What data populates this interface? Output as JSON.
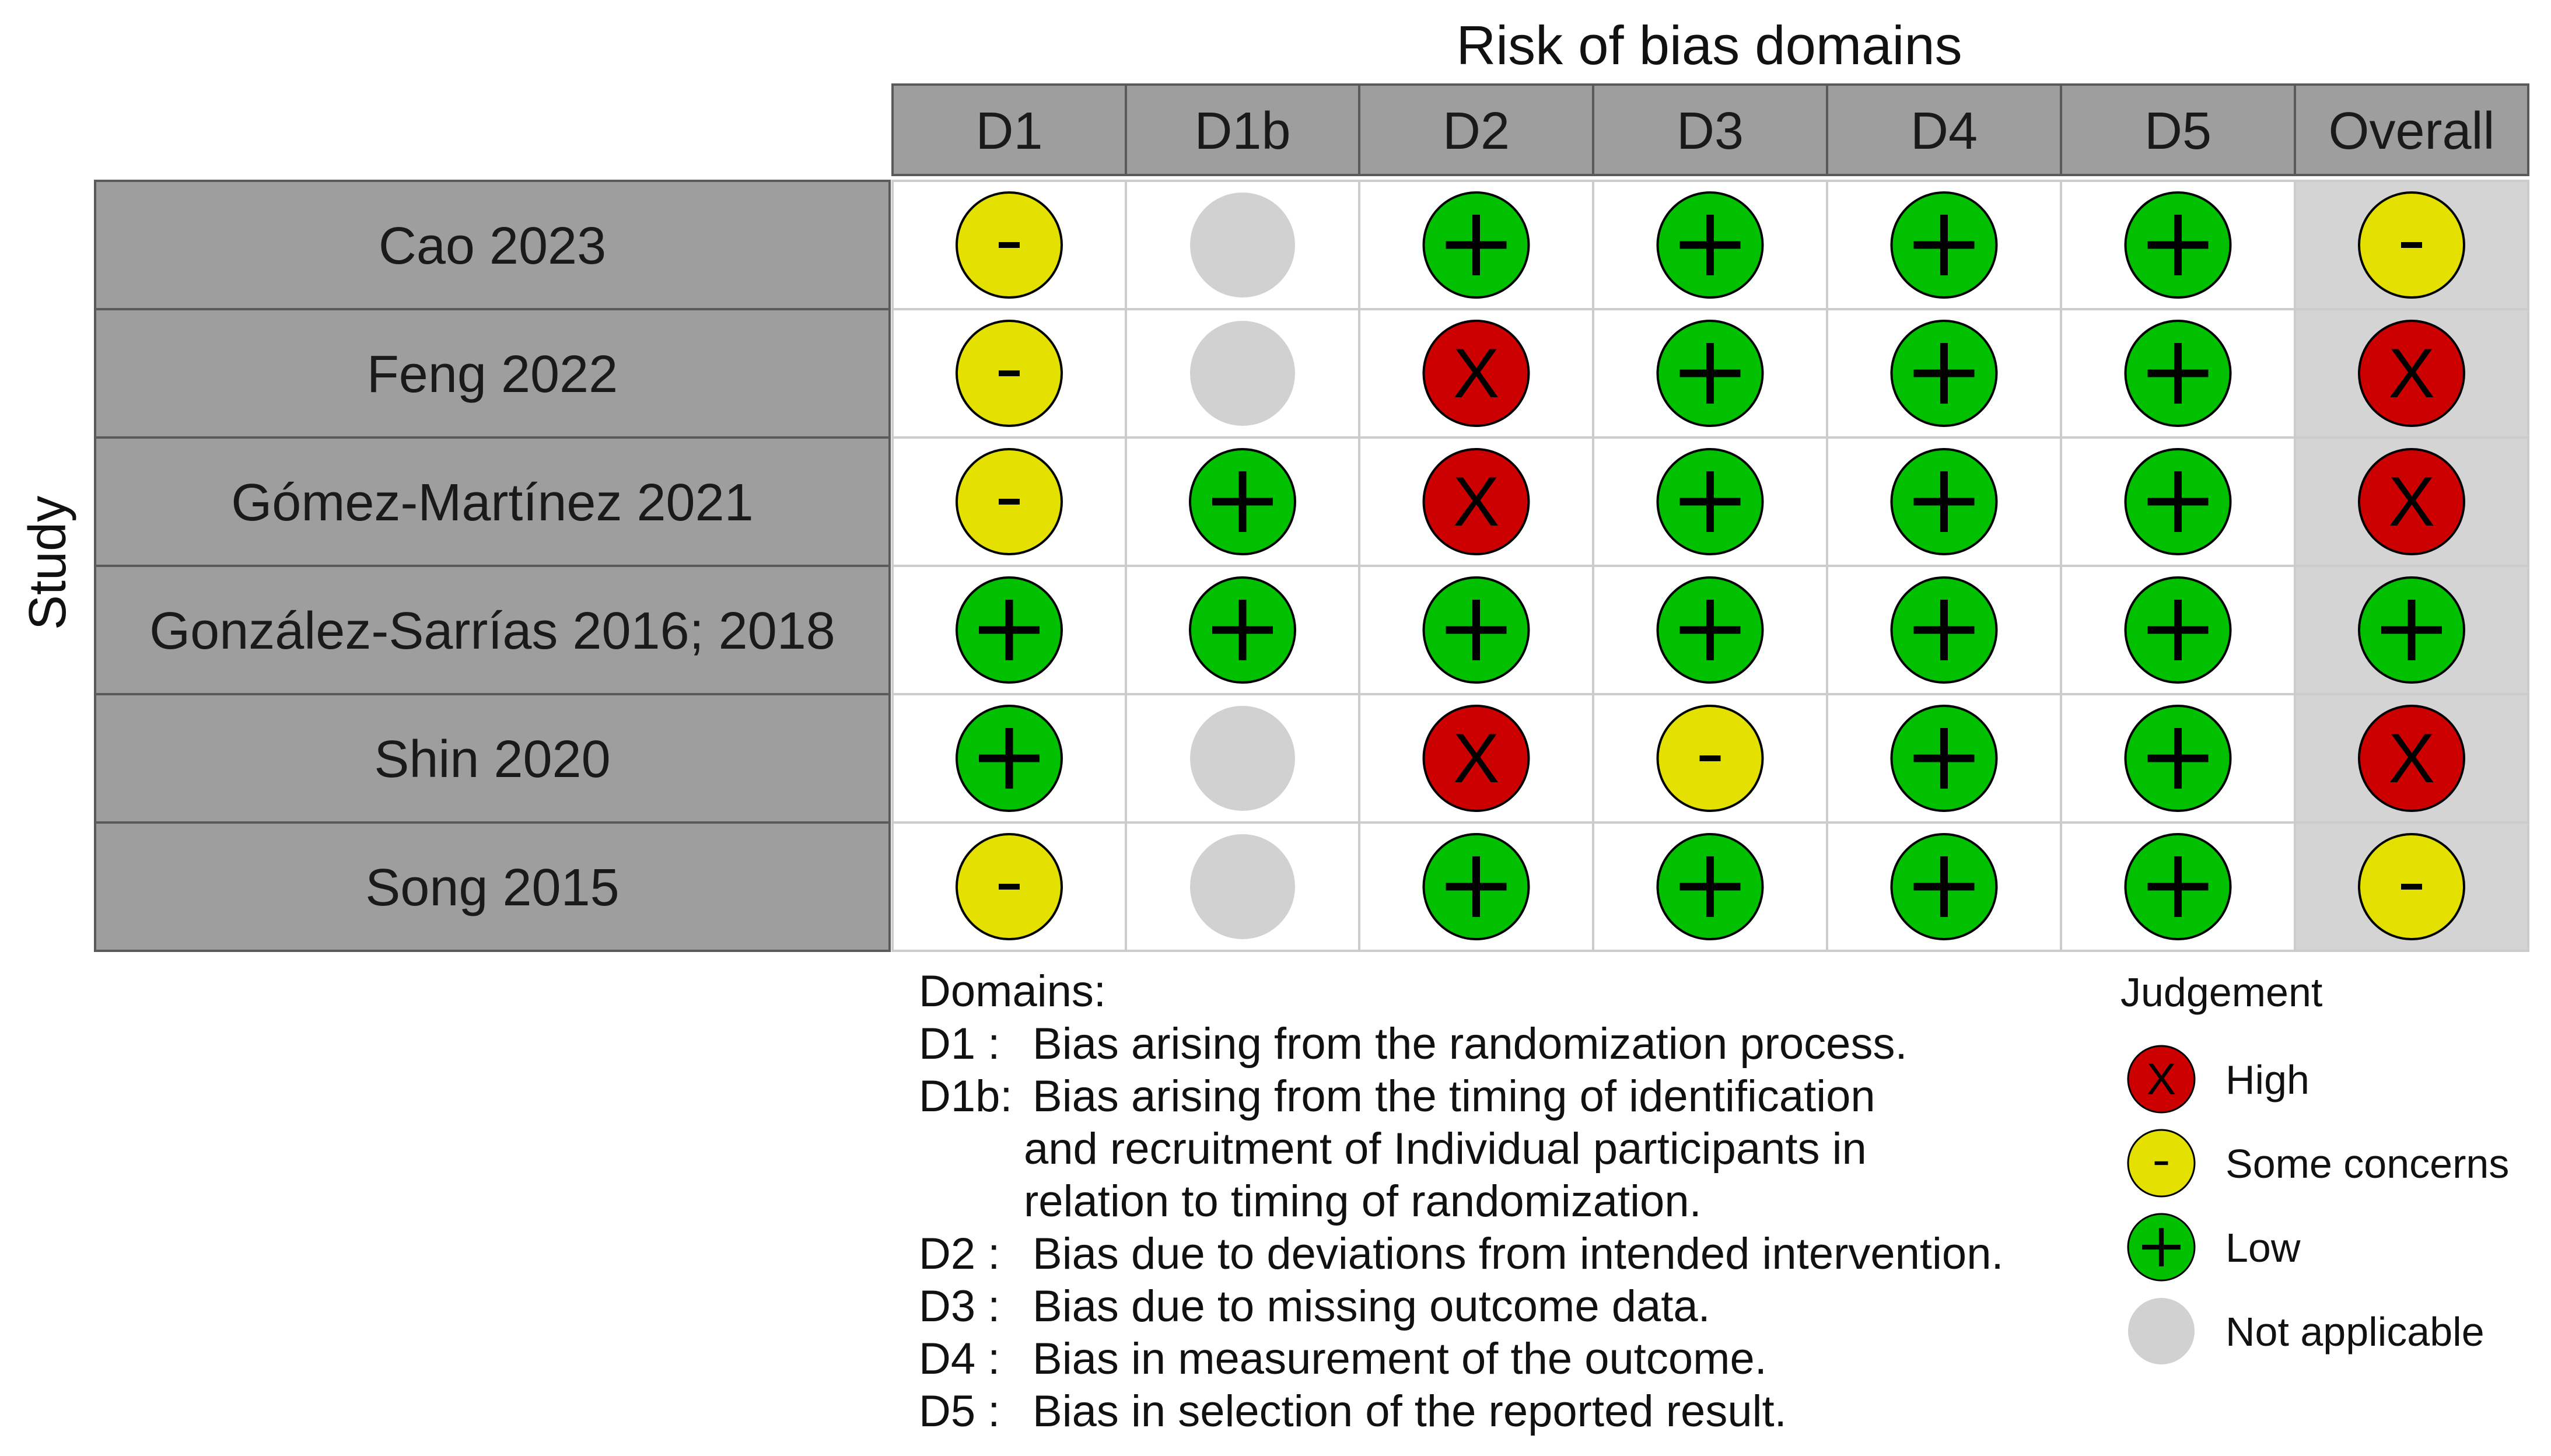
{
  "colors": {
    "header_fill": "#9e9e9e",
    "header_text": "#1a1a1a",
    "overall_bg": "#d4d4d4",
    "grid_line": "#5a5a5a",
    "cell_bg": "#ffffff",
    "high": "#cc0000",
    "some_concerns": "#e4e100",
    "low": "#00c000",
    "not_applicable": "#d1d1d1"
  },
  "chart_data": {
    "type": "table",
    "title": "Risk of bias domains",
    "ylabel": "Study",
    "columns": [
      "D1",
      "D1b",
      "D2",
      "D3",
      "D4",
      "D5",
      "Overall"
    ],
    "studies": [
      {
        "name": "Cao 2023",
        "judgements": [
          "some",
          "na",
          "low",
          "low",
          "low",
          "low",
          "some"
        ]
      },
      {
        "name": "Feng 2022",
        "judgements": [
          "some",
          "na",
          "high",
          "low",
          "low",
          "low",
          "high"
        ]
      },
      {
        "name": "Gómez-Martínez 2021",
        "judgements": [
          "some",
          "low",
          "high",
          "low",
          "low",
          "low",
          "high"
        ]
      },
      {
        "name": "González-Sarrías 2016; 2018",
        "judgements": [
          "low",
          "low",
          "low",
          "low",
          "low",
          "low",
          "low"
        ]
      },
      {
        "name": "Shin 2020",
        "judgements": [
          "low",
          "na",
          "high",
          "some",
          "low",
          "low",
          "high"
        ]
      },
      {
        "name": "Song 2015",
        "judgements": [
          "some",
          "na",
          "low",
          "low",
          "low",
          "low",
          "some"
        ]
      }
    ],
    "symbols": {
      "high": "X",
      "some": "-",
      "low": "+",
      "na": ""
    },
    "domains_heading": "Domains:",
    "domains": [
      {
        "code": "D1 :",
        "lines": [
          "Bias arising from the randomization process."
        ]
      },
      {
        "code": "D1b:",
        "lines": [
          "Bias arising from the timing of identification",
          "and recruitment of Individual participants in",
          "relation to timing of randomization."
        ]
      },
      {
        "code": "D2 :",
        "lines": [
          "Bias due to deviations from intended intervention."
        ]
      },
      {
        "code": "D3 :",
        "lines": [
          "Bias due to missing outcome data."
        ]
      },
      {
        "code": "D4 :",
        "lines": [
          "Bias in measurement of the outcome."
        ]
      },
      {
        "code": "D5 :",
        "lines": [
          "Bias in selection of the reported result."
        ]
      }
    ],
    "legend": {
      "title": "Judgement",
      "items": [
        {
          "key": "high",
          "label": "High"
        },
        {
          "key": "some",
          "label": "Some concerns"
        },
        {
          "key": "low",
          "label": "Low"
        },
        {
          "key": "na",
          "label": "Not applicable"
        }
      ]
    }
  }
}
